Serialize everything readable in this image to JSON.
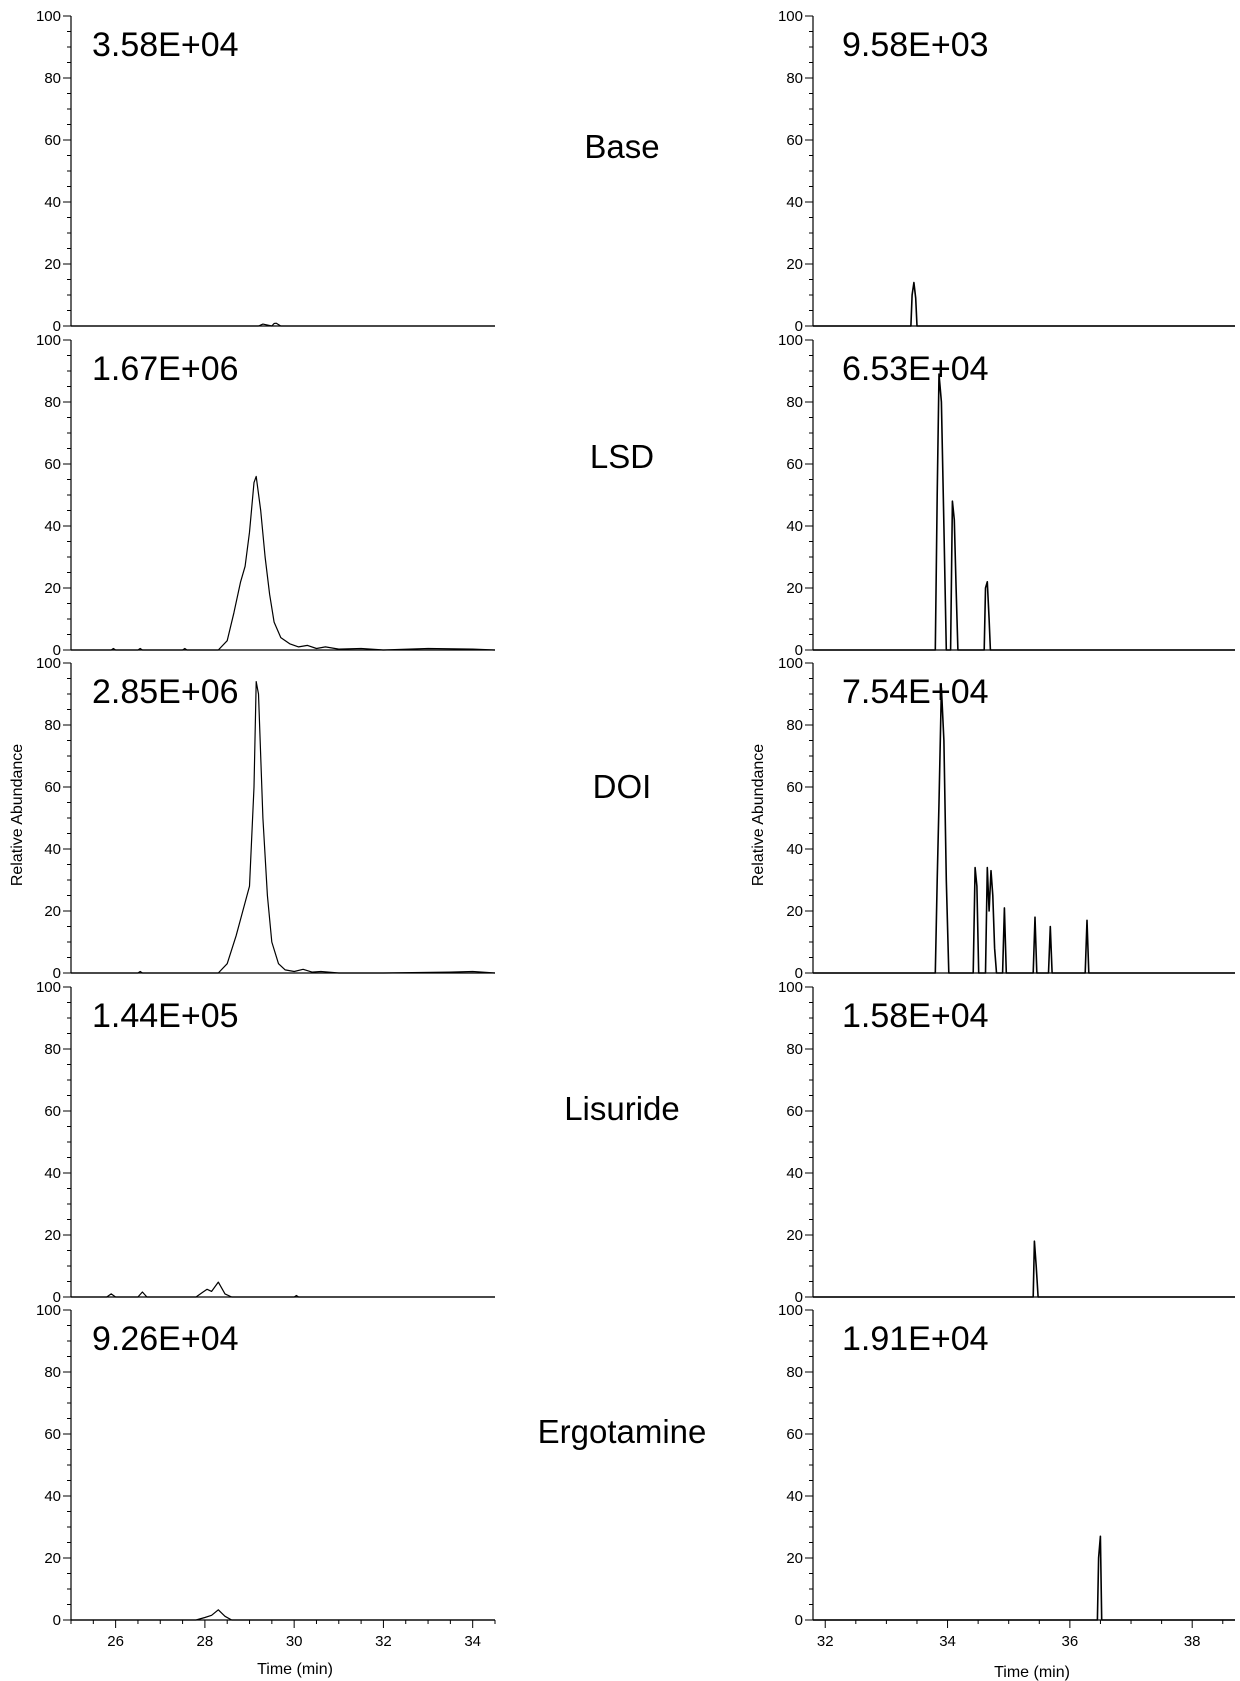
{
  "figure": {
    "y_axis_label": "Relative Abundance",
    "x_axis_label": "Time (min)",
    "conditions": [
      "Base",
      "LSD",
      "DOI",
      "Lisuride",
      "Ergotamine"
    ]
  },
  "chart_data": [
    {
      "type": "line",
      "panel": "left-1",
      "condition": "Base",
      "intensity_label": "3.58E+04",
      "xlim": [
        25,
        34.5
      ],
      "ylim": [
        0,
        100
      ],
      "x_ticks": [
        26,
        28,
        30,
        32,
        34
      ],
      "y_ticks": [
        0,
        20,
        40,
        60,
        80,
        100
      ],
      "xlabel": "Time (min)",
      "ylabel": "Relative Abundance",
      "series": [
        {
          "x": [
            25,
            29.2,
            29.3,
            29.5,
            29.55,
            29.6,
            29.7,
            34.5
          ],
          "y": [
            0,
            0,
            0.6,
            0,
            0.8,
            0.9,
            0,
            0
          ]
        }
      ]
    },
    {
      "type": "line",
      "panel": "left-2",
      "condition": "LSD",
      "intensity_label": "1.67E+06",
      "xlim": [
        25,
        34.5
      ],
      "ylim": [
        0,
        100
      ],
      "x_ticks": [
        26,
        28,
        30,
        32,
        34
      ],
      "y_ticks": [
        0,
        20,
        40,
        60,
        80,
        100
      ],
      "xlabel": "Time (min)",
      "ylabel": "Relative Abundance",
      "series": [
        {
          "x": [
            25,
            25.9,
            25.95,
            26.0,
            26.5,
            26.55,
            26.6,
            27.5,
            27.55,
            27.6,
            28.3,
            28.5,
            28.65,
            28.8,
            28.9,
            29.0,
            29.1,
            29.15,
            29.25,
            29.35,
            29.45,
            29.55,
            29.7,
            29.9,
            30.1,
            30.3,
            30.5,
            30.7,
            31.0,
            31.5,
            32.0,
            33.0,
            34.0,
            34.5
          ],
          "y": [
            0,
            0,
            0.5,
            0,
            0,
            0.5,
            0,
            0,
            0.5,
            0,
            0,
            3,
            12,
            22,
            27,
            38,
            54,
            56,
            45,
            30,
            18,
            9,
            4,
            2,
            1,
            1.5,
            0.5,
            1,
            0.3,
            0.5,
            0,
            0.5,
            0.3,
            0
          ]
        }
      ]
    },
    {
      "type": "line",
      "panel": "left-3",
      "condition": "DOI",
      "intensity_label": "2.85E+06",
      "xlim": [
        25,
        34.5
      ],
      "ylim": [
        0,
        100
      ],
      "x_ticks": [
        26,
        28,
        30,
        32,
        34
      ],
      "y_ticks": [
        0,
        20,
        40,
        60,
        80,
        100
      ],
      "xlabel": "Time (min)",
      "ylabel": "Relative Abundance",
      "series": [
        {
          "x": [
            25,
            26.5,
            26.55,
            26.6,
            28.3,
            28.5,
            28.7,
            28.85,
            29.0,
            29.1,
            29.15,
            29.2,
            29.3,
            29.4,
            29.5,
            29.65,
            29.8,
            30.0,
            30.2,
            30.4,
            30.6,
            31.0,
            32.0,
            33.5,
            34.0,
            34.5
          ],
          "y": [
            0,
            0,
            0.5,
            0,
            0,
            3,
            12,
            20,
            28,
            60,
            94,
            90,
            50,
            25,
            10,
            3,
            1,
            0.5,
            1.2,
            0.3,
            0.5,
            0,
            0,
            0.3,
            0.5,
            0
          ]
        }
      ]
    },
    {
      "type": "line",
      "panel": "left-4",
      "condition": "Lisuride",
      "intensity_label": "1.44E+05",
      "xlim": [
        25,
        34.5
      ],
      "ylim": [
        0,
        100
      ],
      "x_ticks": [
        26,
        28,
        30,
        32,
        34
      ],
      "y_ticks": [
        0,
        20,
        40,
        60,
        80,
        100
      ],
      "xlabel": "Time (min)",
      "ylabel": "Relative Abundance",
      "series": [
        {
          "x": [
            25,
            25.8,
            25.9,
            26.0,
            26.5,
            26.6,
            26.7,
            27.8,
            27.95,
            28.05,
            28.15,
            28.3,
            28.45,
            28.6,
            30.0,
            30.05,
            30.1,
            34.5
          ],
          "y": [
            0,
            0,
            1,
            0,
            0,
            1.6,
            0,
            0,
            1.5,
            2.5,
            1.8,
            4.8,
            1,
            0,
            0,
            0.5,
            0,
            0
          ]
        }
      ]
    },
    {
      "type": "line",
      "panel": "left-5",
      "condition": "Ergotamine",
      "intensity_label": "9.26E+04",
      "xlim": [
        25,
        34.5
      ],
      "ylim": [
        0,
        100
      ],
      "x_ticks": [
        26,
        28,
        30,
        32,
        34
      ],
      "y_ticks": [
        0,
        20,
        40,
        60,
        80,
        100
      ],
      "xlabel": "Time (min)",
      "ylabel": "Relative Abundance",
      "series": [
        {
          "x": [
            25,
            27.8,
            28.0,
            28.15,
            28.3,
            28.45,
            28.6,
            34.5
          ],
          "y": [
            0,
            0,
            0.8,
            1.5,
            3.3,
            1.2,
            0,
            0
          ]
        }
      ]
    },
    {
      "type": "line",
      "panel": "right-1",
      "condition": "Base",
      "intensity_label": "9.58E+03",
      "xlim": [
        31.8,
        38.7
      ],
      "ylim": [
        0,
        100
      ],
      "x_ticks": [
        32,
        34,
        36,
        38
      ],
      "y_ticks": [
        0,
        20,
        40,
        60,
        80,
        100
      ],
      "xlabel": "Time (min)",
      "ylabel": "Relative Abundance",
      "series": [
        {
          "x": [
            31.8,
            33.4,
            33.42,
            33.45,
            33.48,
            33.5,
            38.7
          ],
          "y": [
            0,
            0,
            10,
            14,
            9,
            0,
            0
          ]
        }
      ]
    },
    {
      "type": "line",
      "panel": "right-2",
      "condition": "LSD",
      "intensity_label": "6.53E+04",
      "xlim": [
        31.8,
        38.7
      ],
      "ylim": [
        0,
        100
      ],
      "x_ticks": [
        32,
        34,
        36,
        38
      ],
      "y_ticks": [
        0,
        20,
        40,
        60,
        80,
        100
      ],
      "xlabel": "Time (min)",
      "ylabel": "Relative Abundance",
      "series": [
        {
          "x": [
            31.8,
            33.8,
            33.83,
            33.86,
            33.9,
            33.94,
            33.98,
            34.05,
            34.08,
            34.11,
            34.14,
            34.17,
            34.6,
            34.62,
            34.65,
            34.68,
            34.7,
            38.7
          ],
          "y": [
            0,
            0,
            50,
            89,
            80,
            40,
            0,
            0,
            48,
            42,
            20,
            0,
            0,
            20,
            22,
            10,
            0,
            0
          ]
        }
      ]
    },
    {
      "type": "line",
      "panel": "right-3",
      "condition": "DOI",
      "intensity_label": "7.54E+04",
      "xlim": [
        31.8,
        38.7
      ],
      "ylim": [
        0,
        100
      ],
      "x_ticks": [
        32,
        34,
        36,
        38
      ],
      "y_ticks": [
        0,
        20,
        40,
        60,
        80,
        100
      ],
      "xlabel": "Time (min)",
      "ylabel": "Relative Abundance",
      "series": [
        {
          "x": [
            31.8,
            33.8,
            33.83,
            33.86,
            33.9,
            33.94,
            33.98,
            34.02,
            34.42,
            34.45,
            34.48,
            34.51,
            34.62,
            34.65,
            34.68,
            34.71,
            34.74,
            34.77,
            34.8,
            34.9,
            34.93,
            34.96,
            35.4,
            35.43,
            35.46,
            35.65,
            35.68,
            35.71,
            36.25,
            36.28,
            36.31,
            38.7
          ],
          "y": [
            0,
            0,
            30,
            55,
            92,
            75,
            30,
            0,
            0,
            34,
            28,
            0,
            0,
            34,
            20,
            33,
            25,
            8,
            0,
            0,
            21,
            0,
            0,
            18,
            0,
            0,
            15,
            0,
            0,
            17,
            0,
            0
          ]
        }
      ]
    },
    {
      "type": "line",
      "panel": "right-4",
      "condition": "Lisuride",
      "intensity_label": "1.58E+04",
      "xlim": [
        31.8,
        38.7
      ],
      "ylim": [
        0,
        100
      ],
      "x_ticks": [
        32,
        34,
        36,
        38
      ],
      "y_ticks": [
        0,
        20,
        40,
        60,
        80,
        100
      ],
      "xlabel": "Time (min)",
      "ylabel": "Relative Abundance",
      "series": [
        {
          "x": [
            31.8,
            35.4,
            35.42,
            35.45,
            35.48,
            38.7
          ],
          "y": [
            0,
            0,
            18,
            10,
            0,
            0
          ]
        }
      ]
    },
    {
      "type": "line",
      "panel": "right-5",
      "condition": "Ergotamine",
      "intensity_label": "1.91E+04",
      "xlim": [
        31.8,
        38.7
      ],
      "ylim": [
        0,
        100
      ],
      "x_ticks": [
        32,
        34,
        36,
        38
      ],
      "y_ticks": [
        0,
        20,
        40,
        60,
        80,
        100
      ],
      "xlabel": "Time (min)",
      "ylabel": "Relative Abundance",
      "series": [
        {
          "x": [
            31.8,
            36.45,
            36.47,
            36.5,
            36.52,
            38.7
          ],
          "y": [
            0,
            0,
            20,
            27,
            0,
            0
          ]
        }
      ]
    }
  ]
}
